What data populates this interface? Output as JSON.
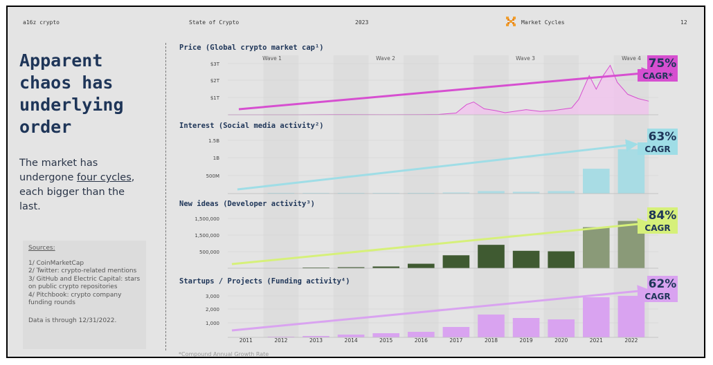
{
  "header": {
    "brand": "a16z crypto",
    "report": "State of Crypto",
    "year": "2023",
    "section": "Market Cycles",
    "page": "12"
  },
  "headline": "Apparent chaos has underlying order",
  "body": {
    "pre": "The market has undergone ",
    "link": "four cycles",
    "post": ", each bigger than the last."
  },
  "sources": {
    "title": "Sources:",
    "items": [
      "1/ CoinMarketCap",
      "2/ Twitter: crypto-related mentions",
      "3/ GitHub and Electric Capital: stars on public crypto repositories",
      "4/ Pitchbook: crypto company funding rounds"
    ],
    "note": "Data is through 12/31/2022."
  },
  "footnote": "*Compound Annual Growth Rate",
  "colors": {
    "price": "#d64fd0",
    "interest": "#9fdde6",
    "ideas": "#d6f07a",
    "funding": "#d9a3f0",
    "headline": "#1e3558"
  },
  "chart_data": [
    {
      "type": "area",
      "title": "Price (Global crypto market cap¹)",
      "x": [
        2011,
        2012,
        2013,
        2014,
        2015,
        2016,
        2017,
        2018,
        2019,
        2020,
        2021,
        2022
      ],
      "y_unit": "$T",
      "ylim": [
        0,
        3.0
      ],
      "y_ticks": [
        "$1T",
        "$2T",
        "$3T"
      ],
      "waves": [
        "Wave 1",
        "Wave 2",
        "Wave 3",
        "Wave 4"
      ],
      "series": [
        {
          "date": [
            2011.0,
            2013.0,
            2013.9,
            2014.5,
            2015.5,
            2016.5,
            2017.0,
            2017.5,
            2017.8,
            2018.0,
            2018.3,
            2018.6,
            2018.9,
            2019.5,
            2019.9,
            2020.3,
            2020.8,
            2021.0,
            2021.3,
            2021.5,
            2021.7,
            2021.9,
            2022.1,
            2022.4,
            2022.7,
            2023.0
          ],
          "value": [
            0.0,
            0.0,
            0.01,
            0.01,
            0.005,
            0.01,
            0.02,
            0.1,
            0.6,
            0.75,
            0.35,
            0.25,
            0.12,
            0.3,
            0.2,
            0.25,
            0.4,
            0.9,
            2.3,
            1.5,
            2.3,
            2.9,
            1.9,
            1.2,
            0.95,
            0.8
          ]
        }
      ],
      "cagr": {
        "value": "75%",
        "label": "CAGR*"
      }
    },
    {
      "type": "bar",
      "title": "Interest (Social media activity²)",
      "categories": [
        "2011",
        "2012",
        "2013",
        "2014",
        "2015",
        "2016",
        "2017",
        "2018",
        "2019",
        "2020",
        "2021",
        "2022"
      ],
      "values": [
        0,
        2000000,
        5000000,
        8000000,
        8000000,
        15000000,
        30000000,
        70000000,
        50000000,
        70000000,
        700000000,
        1250000000
      ],
      "ylim": [
        0,
        1500000000
      ],
      "y_ticks": [
        "500M",
        "1B",
        "1.5B"
      ],
      "cagr": {
        "value": "63%",
        "label": "CAGR"
      }
    },
    {
      "type": "bar",
      "title": "New ideas (Developer activity³)",
      "categories": [
        "2011",
        "2012",
        "2013",
        "2014",
        "2015",
        "2016",
        "2017",
        "2018",
        "2019",
        "2020",
        "2021",
        "2022"
      ],
      "values": [
        0,
        0,
        20000,
        40000,
        70000,
        180000,
        520000,
        940000,
        700000,
        680000,
        1650000,
        1900000
      ],
      "ylim": [
        0,
        2000000
      ],
      "y_ticks": [
        "500,000",
        "1,500,000",
        "1,500,000"
      ],
      "cagr": {
        "value": "84%",
        "label": "CAGR"
      }
    },
    {
      "type": "bar",
      "title": "Startups / Projects (Funding activity⁴)",
      "categories": [
        "2011",
        "2012",
        "2013",
        "2014",
        "2015",
        "2016",
        "2017",
        "2018",
        "2019",
        "2020",
        "2021",
        "2022"
      ],
      "values": [
        0,
        30,
        100,
        200,
        300,
        400,
        750,
        1650,
        1400,
        1300,
        2900,
        3000
      ],
      "ylim": [
        0,
        3000
      ],
      "y_ticks": [
        "1,000",
        "2,000",
        "3,000"
      ],
      "cagr": {
        "value": "62%",
        "label": "CAGR"
      }
    }
  ]
}
